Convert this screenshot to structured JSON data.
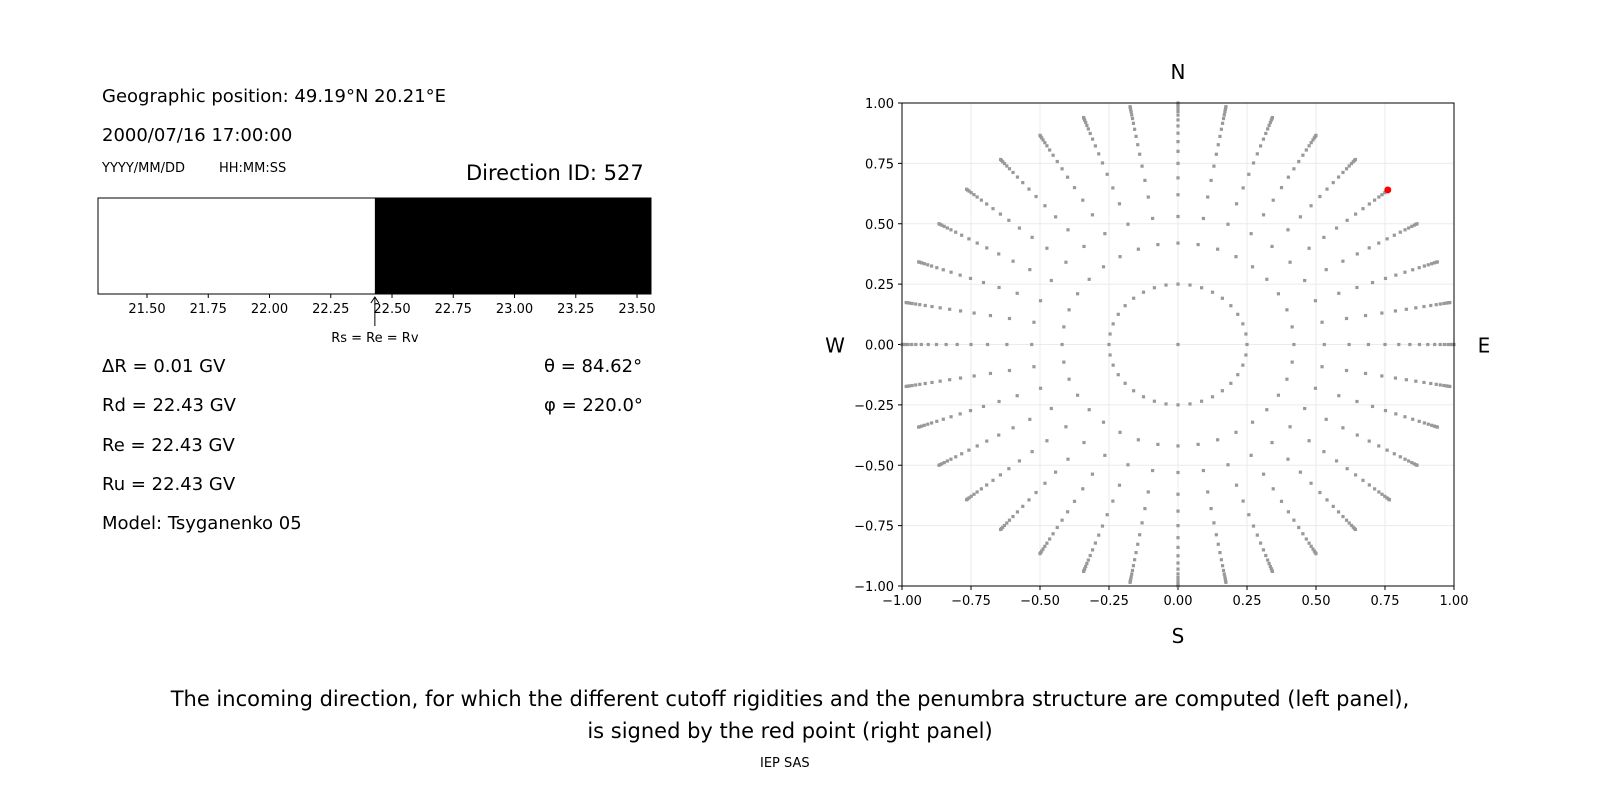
{
  "info": {
    "geo_position": "Geographic position: 49.19°N 20.21°E",
    "datetime": "2000/07/16 17:00:00",
    "date_format": "YYYY/MM/DD",
    "time_format": "HH:MM:SS",
    "direction_id": "Direction ID: 527",
    "delta_r": "ΔR = 0.01 GV",
    "rd": "Rd = 22.43 GV",
    "re": "Re = 22.43 GV",
    "ru": "Ru = 22.43 GV",
    "model": "Model: Tsyganenko 05",
    "theta": "θ = 84.62°",
    "phi": "φ = 220.0°"
  },
  "chart_data": [
    {
      "type": "bar",
      "xlim": [
        21.3,
        23.557
      ],
      "xticks": [
        "21.50",
        "21.75",
        "22.00",
        "22.25",
        "22.50",
        "22.75",
        "23.00",
        "23.25",
        "23.50"
      ],
      "segments": [
        {
          "from": 21.3,
          "to": 22.43,
          "color": "#ffffff",
          "meaning": "allowed"
        },
        {
          "from": 22.43,
          "to": 23.557,
          "color": "#000000",
          "meaning": "forbidden"
        }
      ],
      "annotation": {
        "text": "Rs = Re = Rv",
        "x": 22.43
      }
    },
    {
      "type": "scatter",
      "xlim": [
        -1,
        1
      ],
      "ylim": [
        -1,
        1
      ],
      "xticks": [
        "−1.00",
        "−0.75",
        "−0.50",
        "−0.25",
        "0.00",
        "0.25",
        "0.50",
        "0.75",
        "1.00"
      ],
      "yticks": [
        "−1.00",
        "−0.75",
        "−0.50",
        "−0.25",
        "0.00",
        "0.25",
        "0.50",
        "0.75",
        "1.00"
      ],
      "grid": true,
      "compass": {
        "n": "N",
        "s": "S",
        "e": "E",
        "w": "W"
      },
      "point_color": "#999999",
      "highlight": {
        "x": 0.76,
        "y": 0.64,
        "color": "#ff0000"
      },
      "grid_pattern": {
        "inner_ring_radius": 0.25,
        "azimuth_step_deg": 10,
        "radii": [
          0.42,
          0.53,
          0.62,
          0.69,
          0.75,
          0.8,
          0.84,
          0.875,
          0.905,
          0.93,
          0.95,
          0.965,
          0.978,
          0.988,
          0.995,
          1.0
        ]
      }
    }
  ],
  "caption": {
    "line1": "The incoming direction, for which the different cutoff rigidities and the penumbra structure are computed (left panel),",
    "line2": "is signed by the red point (right panel)"
  },
  "footer": "IEP SAS"
}
